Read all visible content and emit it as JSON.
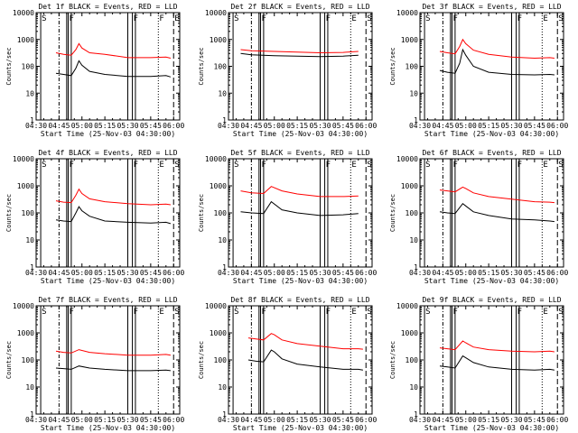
{
  "figure": {
    "ylabel": "Counts/sec",
    "xlabel": "Start Time (25-Nov-03 04:30:00)",
    "x_ticks": [
      "04:30",
      "04:45",
      "05:00",
      "05:15",
      "05:30",
      "05:45",
      "06:00"
    ],
    "y_ticks": [
      "1",
      "10",
      "100",
      "1000",
      "10000"
    ],
    "ylim": [
      1,
      10000
    ],
    "y_scale": "log",
    "colors": {
      "events": "#000000",
      "lld": "#ff0000",
      "axis": "#000000"
    }
  },
  "chart_data": [
    {
      "type": "line",
      "detector": "1f",
      "title": "Det 1f BLACK = Events, RED = LLD",
      "xlabel": "Start Time (25-Nov-03 04:30:00)",
      "ylabel": "Counts/sec",
      "ylim": [
        1,
        10000
      ],
      "y_scale": "log",
      "x": [
        "04:43",
        "04:48",
        "04:53",
        "04:56",
        "04:58",
        "05:00",
        "05:05",
        "05:15",
        "05:30",
        "05:45",
        "05:55",
        "05:58"
      ],
      "series": [
        {
          "name": "Events",
          "color": "#000000",
          "values": [
            55,
            50,
            45,
            85,
            160,
            110,
            65,
            50,
            42,
            42,
            45,
            40
          ]
        },
        {
          "name": "LLD",
          "color": "#ff0000",
          "values": [
            320,
            280,
            260,
            420,
            700,
            480,
            320,
            280,
            210,
            210,
            220,
            200
          ]
        }
      ],
      "marker_labels": [
        "S",
        "F",
        "F",
        "F",
        "E",
        "S"
      ]
    },
    {
      "type": "line",
      "detector": "2f",
      "title": "Det 2f BLACK = Events, RED = LLD",
      "xlabel": "Start Time (25-Nov-03 04:30:00)",
      "ylabel": "Counts/sec",
      "ylim": [
        1,
        10000
      ],
      "y_scale": "log",
      "x": [
        "04:38",
        "04:45",
        "05:00",
        "05:15",
        "05:30",
        "05:45",
        "05:55"
      ],
      "series": [
        {
          "name": "Events",
          "color": "#000000",
          "values": [
            300,
            270,
            250,
            240,
            230,
            240,
            260
          ]
        },
        {
          "name": "LLD",
          "color": "#ff0000",
          "values": [
            420,
            380,
            360,
            340,
            320,
            330,
            360
          ]
        }
      ],
      "marker_labels": [
        "S",
        "F",
        "F",
        "E",
        "S"
      ]
    },
    {
      "type": "line",
      "detector": "3f",
      "title": "Det 3f BLACK = Events, RED = LLD",
      "xlabel": "Start Time (25-Nov-03 04:30:00)",
      "ylabel": "Counts/sec",
      "ylim": [
        1,
        10000
      ],
      "y_scale": "log",
      "x": [
        "04:43",
        "04:48",
        "04:53",
        "04:56",
        "04:58",
        "05:00",
        "05:05",
        "05:15",
        "05:30",
        "05:45",
        "05:55",
        "05:58"
      ],
      "series": [
        {
          "name": "Events",
          "color": "#000000",
          "values": [
            70,
            60,
            55,
            130,
            420,
            260,
            100,
            60,
            50,
            48,
            50,
            48
          ]
        },
        {
          "name": "LLD",
          "color": "#ff0000",
          "values": [
            360,
            320,
            290,
            550,
            1000,
            700,
            400,
            280,
            220,
            200,
            210,
            200
          ]
        }
      ],
      "marker_labels": [
        "S",
        "F",
        "F",
        "E",
        "S"
      ]
    },
    {
      "type": "line",
      "detector": "4f",
      "title": "Det 4f BLACK = Events, RED = LLD",
      "xlabel": "Start Time (25-Nov-03 04:30:00)",
      "ylabel": "Counts/sec",
      "ylim": [
        1,
        10000
      ],
      "y_scale": "log",
      "x": [
        "04:43",
        "04:48",
        "04:53",
        "04:56",
        "04:58",
        "05:00",
        "05:05",
        "05:15",
        "05:30",
        "05:45",
        "05:55",
        "05:58"
      ],
      "series": [
        {
          "name": "Events",
          "color": "#000000",
          "values": [
            55,
            50,
            48,
            100,
            170,
            120,
            75,
            50,
            45,
            42,
            45,
            40
          ]
        },
        {
          "name": "LLD",
          "color": "#ff0000",
          "values": [
            280,
            250,
            240,
            450,
            750,
            520,
            330,
            260,
            220,
            200,
            210,
            200
          ]
        }
      ],
      "marker_labels": [
        "S",
        "F",
        "F",
        "E",
        "S"
      ]
    },
    {
      "type": "line",
      "detector": "5f",
      "title": "Det 5f BLACK = Events, RED = LLD",
      "xlabel": "Start Time (25-Nov-03 04:30:00)",
      "ylabel": "Counts/sec",
      "ylim": [
        1,
        10000
      ],
      "y_scale": "log",
      "x": [
        "04:38",
        "04:45",
        "04:53",
        "04:58",
        "05:05",
        "05:15",
        "05:30",
        "05:45",
        "05:55"
      ],
      "series": [
        {
          "name": "Events",
          "color": "#000000",
          "values": [
            110,
            100,
            95,
            260,
            130,
            100,
            80,
            85,
            95
          ]
        },
        {
          "name": "LLD",
          "color": "#ff0000",
          "values": [
            650,
            550,
            520,
            950,
            650,
            500,
            400,
            400,
            420
          ]
        }
      ],
      "marker_labels": [
        "S",
        "F",
        "F",
        "E",
        "S"
      ]
    },
    {
      "type": "line",
      "detector": "6f",
      "title": "Det 6f BLACK = Events, RED = LLD",
      "xlabel": "Start Time (25-Nov-03 04:30:00)",
      "ylabel": "Counts/sec",
      "ylim": [
        1,
        10000
      ],
      "y_scale": "log",
      "x": [
        "04:43",
        "04:48",
        "04:53",
        "04:58",
        "05:00",
        "05:05",
        "05:15",
        "05:30",
        "05:45",
        "05:55",
        "05:58"
      ],
      "series": [
        {
          "name": "Events",
          "color": "#000000",
          "values": [
            110,
            100,
            95,
            220,
            180,
            110,
            80,
            60,
            55,
            50,
            48
          ]
        },
        {
          "name": "LLD",
          "color": "#ff0000",
          "values": [
            700,
            650,
            600,
            900,
            800,
            550,
            400,
            320,
            260,
            250,
            240
          ]
        }
      ],
      "marker_labels": [
        "S",
        "F",
        "F",
        "E",
        "S"
      ]
    },
    {
      "type": "line",
      "detector": "7f",
      "title": "Det 7f BLACK = Events, RED = LLD",
      "xlabel": "Start Time (25-Nov-03 04:30:00)",
      "ylabel": "Counts/sec",
      "ylim": [
        1,
        10000
      ],
      "y_scale": "log",
      "x": [
        "04:43",
        "04:48",
        "04:53",
        "04:58",
        "05:05",
        "05:15",
        "05:30",
        "05:45",
        "05:55",
        "05:58"
      ],
      "series": [
        {
          "name": "Events",
          "color": "#000000",
          "values": [
            50,
            48,
            45,
            60,
            50,
            45,
            40,
            40,
            42,
            40
          ]
        },
        {
          "name": "LLD",
          "color": "#ff0000",
          "values": [
            210,
            190,
            180,
            240,
            190,
            170,
            150,
            150,
            160,
            150
          ]
        }
      ],
      "marker_labels": [
        "S",
        "F",
        "F",
        "E",
        "S"
      ]
    },
    {
      "type": "line",
      "detector": "8f",
      "title": "Det 8f BLACK = Events, RED = LLD",
      "xlabel": "Start Time (25-Nov-03 04:30:00)",
      "ylabel": "Counts/sec",
      "ylim": [
        1,
        10000
      ],
      "y_scale": "log",
      "x": [
        "04:43",
        "04:48",
        "04:53",
        "04:58",
        "05:00",
        "05:05",
        "05:15",
        "05:30",
        "05:45",
        "05:55",
        "05:58"
      ],
      "series": [
        {
          "name": "Events",
          "color": "#000000",
          "values": [
            100,
            90,
            85,
            230,
            200,
            110,
            70,
            55,
            45,
            45,
            42
          ]
        },
        {
          "name": "LLD",
          "color": "#ff0000",
          "values": [
            650,
            600,
            550,
            950,
            850,
            550,
            400,
            320,
            260,
            260,
            250
          ]
        }
      ],
      "marker_labels": [
        "S",
        "F",
        "F",
        "E",
        "S"
      ]
    },
    {
      "type": "line",
      "detector": "9f",
      "title": "Det 9f BLACK = Events, RED = LLD",
      "xlabel": "Start Time (25-Nov-03 04:30:00)",
      "ylabel": "Counts/sec",
      "ylim": [
        1,
        10000
      ],
      "y_scale": "log",
      "x": [
        "04:43",
        "04:48",
        "04:53",
        "04:58",
        "05:00",
        "05:05",
        "05:15",
        "05:30",
        "05:45",
        "05:55",
        "05:58"
      ],
      "series": [
        {
          "name": "Events",
          "color": "#000000",
          "values": [
            60,
            55,
            50,
            140,
            120,
            80,
            55,
            45,
            42,
            45,
            42
          ]
        },
        {
          "name": "LLD",
          "color": "#ff0000",
          "values": [
            280,
            260,
            240,
            500,
            430,
            300,
            240,
            210,
            200,
            210,
            200
          ]
        }
      ],
      "marker_labels": [
        "S",
        "F",
        "F",
        "E",
        "S"
      ]
    }
  ]
}
